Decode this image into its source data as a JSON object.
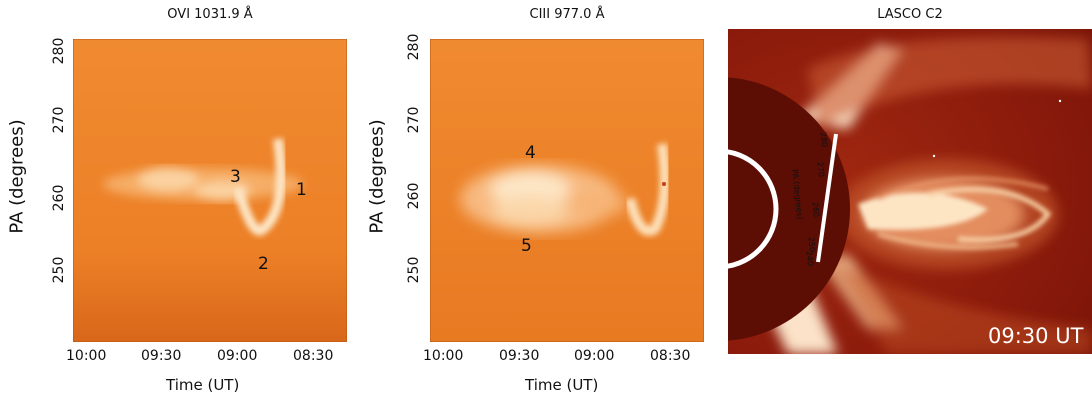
{
  "panels": [
    {
      "title": "OVI 1031.9 Å",
      "ylabel": "PA (degrees)",
      "xlabel": "Time (UT)",
      "xticks": [
        "10:00",
        "09:30",
        "09:00",
        "08:30"
      ],
      "yticks": [
        "280",
        "270",
        "260",
        "250"
      ],
      "annotations": [
        "3",
        "1",
        "2"
      ]
    },
    {
      "title": "CIII 977.0 Å",
      "ylabel": "PA (degrees)",
      "xlabel": "Time (UT)",
      "xticks": [
        "10:00",
        "09:30",
        "09:00",
        "08:30"
      ],
      "yticks": [
        "280",
        "270",
        "260",
        "250"
      ],
      "annotations": [
        "4",
        "5"
      ]
    },
    {
      "title": "LASCO C2",
      "timestamp": "09:30 UT",
      "slit_labels": [
        "280",
        "270",
        "PA (degrees)",
        "260",
        "250",
        "240"
      ]
    }
  ],
  "colors": {
    "map_bg": "#f0862c",
    "map_dark": "#d9671a",
    "emission": "#fde5c4",
    "lasco_bg": "#8c1b0c",
    "occulter": "#5c0e05"
  }
}
